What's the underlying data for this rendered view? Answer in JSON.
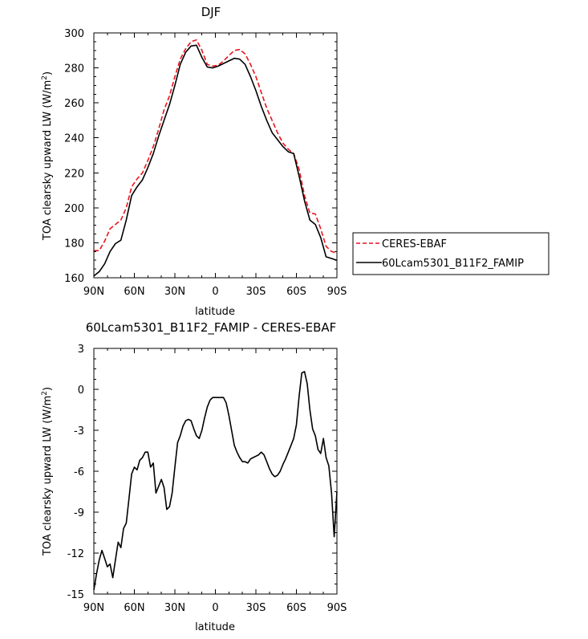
{
  "chart_data": [
    {
      "type": "line",
      "title": "DJF",
      "xlabel": "latitude",
      "ylabel": "TOA clearsky upward LW (W/m",
      "ylabel_superscript": "2",
      "ylabel_close": ")",
      "xlim": [
        90,
        -90
      ],
      "ylim": [
        160,
        300
      ],
      "xticks": [
        90,
        60,
        30,
        0,
        -30,
        -60,
        -90
      ],
      "xticklabels": [
        "90N",
        "60N",
        "30N",
        "0",
        "30S",
        "60S",
        "90S"
      ],
      "yticks": [
        160,
        180,
        200,
        220,
        240,
        260,
        280,
        300
      ],
      "yticklabels": [
        "160",
        "180",
        "200",
        "220",
        "240",
        "260",
        "280",
        "300"
      ],
      "legend_position": "right",
      "x": [
        90,
        86,
        82,
        78,
        74,
        70,
        66,
        62,
        58,
        54,
        50,
        46,
        42,
        38,
        34,
        30,
        26,
        22,
        18,
        14,
        10,
        6,
        2,
        -2,
        -6,
        -10,
        -14,
        -18,
        -22,
        -26,
        -30,
        -34,
        -38,
        -42,
        -46,
        -50,
        -54,
        -58,
        -62,
        -66,
        -70,
        -74,
        -78,
        -82,
        -86,
        -90
      ],
      "series": [
        {
          "name": "CERES-EBAF",
          "color": "#e8141b",
          "dash": "dashed",
          "values": [
            175.5,
            175.5,
            181,
            188,
            190.5,
            193,
            200,
            212,
            216.5,
            220,
            227,
            235,
            245,
            256,
            264,
            275,
            285,
            291,
            295,
            296,
            290,
            282,
            281,
            281.5,
            284,
            287,
            290,
            290.5,
            288,
            282,
            275,
            266,
            257,
            250,
            243,
            237,
            233.5,
            231,
            222,
            207,
            197,
            196.5,
            188,
            178,
            175,
            174
          ]
        },
        {
          "name": "60Lcam5301_B11F2_FAMIP",
          "color": "#000000",
          "dash": "solid",
          "values": [
            161,
            163.5,
            168,
            175,
            179.5,
            181.5,
            193,
            207,
            212,
            216,
            223,
            231,
            241,
            250,
            259,
            270,
            282,
            289,
            292.5,
            293,
            286,
            280.5,
            280,
            281,
            282.5,
            284,
            285.5,
            285,
            282,
            275,
            267,
            258,
            250,
            243,
            239,
            235,
            232,
            231,
            218,
            204,
            193,
            190.5,
            183,
            172,
            171,
            170
          ]
        }
      ]
    },
    {
      "type": "line",
      "title": "60Lcam5301_B11F2_FAMIP - CERES-EBAF",
      "xlabel": "latitude",
      "ylabel": "TOA clearsky upward LW (W/m",
      "ylabel_superscript": "2",
      "ylabel_close": ")",
      "xlim": [
        90,
        -90
      ],
      "ylim": [
        -15,
        3
      ],
      "xticks": [
        90,
        60,
        30,
        0,
        -30,
        -60,
        -90
      ],
      "xticklabels": [
        "90N",
        "60N",
        "30N",
        "0",
        "30S",
        "60S",
        "90S"
      ],
      "yticks": [
        -15,
        -12,
        -9,
        -6,
        -3,
        0,
        3
      ],
      "yticklabels": [
        "-15",
        "-12",
        "-9",
        "-6",
        "-3",
        "0",
        "3"
      ],
      "x": [
        90,
        88,
        86,
        84,
        82,
        80,
        78,
        76,
        74,
        72,
        70,
        68,
        66,
        64,
        62,
        60,
        58,
        56,
        54,
        52,
        50,
        48,
        46,
        44,
        42,
        40,
        38,
        36,
        34,
        32,
        30,
        28,
        26,
        24,
        22,
        20,
        18,
        16,
        14,
        12,
        10,
        8,
        6,
        4,
        2,
        0,
        -2,
        -4,
        -6,
        -8,
        -10,
        -12,
        -14,
        -16,
        -18,
        -20,
        -22,
        -24,
        -26,
        -28,
        -30,
        -32,
        -34,
        -36,
        -38,
        -40,
        -42,
        -44,
        -46,
        -48,
        -50,
        -52,
        -54,
        -56,
        -58,
        -60,
        -62,
        -64,
        -66,
        -68,
        -70,
        -72,
        -74,
        -76,
        -78,
        -80,
        -82,
        -84,
        -86,
        -88,
        -90
      ],
      "series": [
        {
          "name": "",
          "color": "#000000",
          "dash": "solid",
          "values": [
            -14.7,
            -13.5,
            -12.5,
            -11.8,
            -12.4,
            -13.0,
            -12.8,
            -13.8,
            -12.5,
            -11.2,
            -11.6,
            -10.2,
            -9.8,
            -8.0,
            -6.2,
            -5.7,
            -5.9,
            -5.2,
            -5.0,
            -4.6,
            -4.6,
            -5.7,
            -5.4,
            -7.6,
            -7.1,
            -6.6,
            -7.2,
            -8.8,
            -8.6,
            -7.6,
            -5.7,
            -3.9,
            -3.4,
            -2.7,
            -2.3,
            -2.2,
            -2.3,
            -2.9,
            -3.4,
            -3.6,
            -3.0,
            -2.1,
            -1.3,
            -0.8,
            -0.6,
            -0.6,
            -0.6,
            -0.6,
            -0.6,
            -1.0,
            -1.9,
            -3.0,
            -4.1,
            -4.6,
            -5.0,
            -5.3,
            -5.3,
            -5.4,
            -5.1,
            -5.0,
            -4.9,
            -4.8,
            -4.6,
            -4.8,
            -5.3,
            -5.8,
            -6.2,
            -6.4,
            -6.3,
            -6.0,
            -5.5,
            -5.1,
            -4.6,
            -4.1,
            -3.6,
            -2.6,
            -0.5,
            1.2,
            1.3,
            0.4,
            -1.5,
            -2.9,
            -3.4,
            -4.4,
            -4.7,
            -3.6,
            -5.0,
            -5.6,
            -7.6,
            -10.8,
            -7.5
          ]
        }
      ]
    }
  ]
}
